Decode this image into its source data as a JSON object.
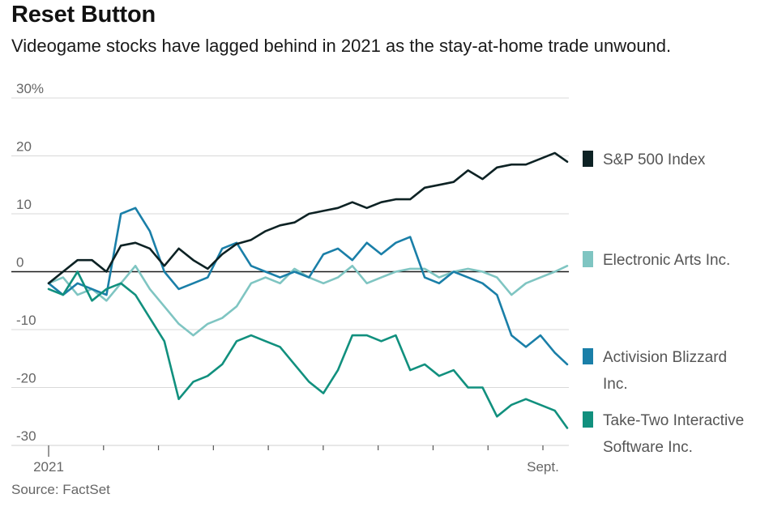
{
  "title": "Reset Button",
  "subtitle": "Videogame stocks have lagged behind in 2021 as the stay-at-home trade unwound.",
  "source": "Source: FactSet",
  "chart_data": {
    "type": "line",
    "ylim": [
      -30,
      30
    ],
    "y_ticks": [
      {
        "value": 30,
        "label": "30%"
      },
      {
        "value": 20,
        "label": "20"
      },
      {
        "value": 10,
        "label": "10"
      },
      {
        "value": 0,
        "label": "0"
      },
      {
        "value": -10,
        "label": "-10"
      },
      {
        "value": -20,
        "label": "-20"
      },
      {
        "value": -30,
        "label": "-30"
      }
    ],
    "x_labels": [
      {
        "at": 0,
        "label": "2021"
      },
      {
        "at": 1,
        "label": "Sept."
      }
    ],
    "x_range": [
      "2021-01-01",
      "2021-09-09"
    ],
    "series": [
      {
        "name": "S&P 500 Index",
        "legend_lines": [
          "S&P 500 Index"
        ],
        "color": "#0d2224",
        "x": [
          "2021-01-01",
          "2021-01-08",
          "2021-01-15",
          "2021-01-22",
          "2021-01-29",
          "2021-02-05",
          "2021-02-12",
          "2021-02-19",
          "2021-02-26",
          "2021-03-05",
          "2021-03-12",
          "2021-03-19",
          "2021-03-26",
          "2021-04-02",
          "2021-04-09",
          "2021-04-16",
          "2021-04-23",
          "2021-04-30",
          "2021-05-07",
          "2021-05-14",
          "2021-05-21",
          "2021-05-28",
          "2021-06-04",
          "2021-06-11",
          "2021-06-18",
          "2021-06-25",
          "2021-07-02",
          "2021-07-09",
          "2021-07-16",
          "2021-07-23",
          "2021-07-30",
          "2021-08-06",
          "2021-08-13",
          "2021-08-20",
          "2021-08-27",
          "2021-09-03",
          "2021-09-09"
        ],
        "values": [
          -2,
          0,
          2,
          2,
          0,
          4.5,
          5,
          4,
          1,
          4,
          2,
          0.5,
          3,
          4.8,
          5.5,
          7,
          8,
          8.5,
          10,
          10.5,
          11,
          12,
          11,
          12,
          12.5,
          12.5,
          14.5,
          15,
          15.5,
          17.5,
          16,
          18,
          18.5,
          18.5,
          19.5,
          20.5,
          19
        ]
      },
      {
        "name": "Electronic Arts Inc.",
        "legend_lines": [
          "Electronic Arts Inc."
        ],
        "color": "#7fc5c2",
        "x": [
          "2021-01-01",
          "2021-01-08",
          "2021-01-15",
          "2021-01-22",
          "2021-01-29",
          "2021-02-05",
          "2021-02-12",
          "2021-02-19",
          "2021-02-26",
          "2021-03-05",
          "2021-03-12",
          "2021-03-19",
          "2021-03-26",
          "2021-04-02",
          "2021-04-09",
          "2021-04-16",
          "2021-04-23",
          "2021-04-30",
          "2021-05-07",
          "2021-05-14",
          "2021-05-21",
          "2021-05-28",
          "2021-06-04",
          "2021-06-11",
          "2021-06-18",
          "2021-06-25",
          "2021-07-02",
          "2021-07-09",
          "2021-07-16",
          "2021-07-23",
          "2021-07-30",
          "2021-08-06",
          "2021-08-13",
          "2021-08-20",
          "2021-08-27",
          "2021-09-03",
          "2021-09-09"
        ],
        "values": [
          -2,
          -1,
          -4,
          -3,
          -5,
          -2,
          1,
          -3,
          -6,
          -9,
          -11,
          -9,
          -8,
          -6,
          -2,
          -1,
          -2,
          0.5,
          -1,
          -2,
          -1,
          1,
          -2,
          -1,
          0,
          0.5,
          0.5,
          -1,
          0,
          0.5,
          0,
          -1,
          -4,
          -2,
          -1,
          0,
          1
        ]
      },
      {
        "name": "Activision Blizzard Inc.",
        "legend_lines": [
          "Activision Blizzard",
          "Inc."
        ],
        "color": "#1a7fa8",
        "x": [
          "2021-01-01",
          "2021-01-08",
          "2021-01-15",
          "2021-01-22",
          "2021-01-29",
          "2021-02-05",
          "2021-02-12",
          "2021-02-19",
          "2021-02-26",
          "2021-03-05",
          "2021-03-12",
          "2021-03-19",
          "2021-03-26",
          "2021-04-02",
          "2021-04-09",
          "2021-04-16",
          "2021-04-23",
          "2021-04-30",
          "2021-05-07",
          "2021-05-14",
          "2021-05-21",
          "2021-05-28",
          "2021-06-04",
          "2021-06-11",
          "2021-06-18",
          "2021-06-25",
          "2021-07-02",
          "2021-07-09",
          "2021-07-16",
          "2021-07-23",
          "2021-07-30",
          "2021-08-06",
          "2021-08-13",
          "2021-08-20",
          "2021-08-27",
          "2021-09-03",
          "2021-09-09"
        ],
        "values": [
          -2,
          -4,
          -2,
          -3,
          -4,
          10,
          11,
          7,
          0,
          -3,
          -2,
          -1,
          4,
          5,
          1,
          0,
          -1,
          0,
          -1,
          3,
          4,
          2,
          5,
          3,
          5,
          6,
          -1,
          -2,
          0,
          -1,
          -2,
          -4,
          -11,
          -13,
          -11,
          -14,
          -16
        ]
      },
      {
        "name": "Take-Two Interactive Software Inc.",
        "legend_lines": [
          "Take-Two Interactive",
          "Software Inc."
        ],
        "color": "#11907e",
        "x": [
          "2021-01-01",
          "2021-01-08",
          "2021-01-15",
          "2021-01-22",
          "2021-01-29",
          "2021-02-05",
          "2021-02-12",
          "2021-02-19",
          "2021-02-26",
          "2021-03-05",
          "2021-03-12",
          "2021-03-19",
          "2021-03-26",
          "2021-04-02",
          "2021-04-09",
          "2021-04-16",
          "2021-04-23",
          "2021-04-30",
          "2021-05-07",
          "2021-05-14",
          "2021-05-21",
          "2021-05-28",
          "2021-06-04",
          "2021-06-11",
          "2021-06-18",
          "2021-06-25",
          "2021-07-02",
          "2021-07-09",
          "2021-07-16",
          "2021-07-23",
          "2021-07-30",
          "2021-08-06",
          "2021-08-13",
          "2021-08-20",
          "2021-08-27",
          "2021-09-03",
          "2021-09-09"
        ],
        "values": [
          -3,
          -4,
          0,
          -5,
          -3,
          -2,
          -4,
          -8,
          -12,
          -22,
          -19,
          -18,
          -16,
          -12,
          -11,
          -12,
          -13,
          -16,
          -19,
          -21,
          -17,
          -11,
          -11,
          -12,
          -11,
          -17,
          -16,
          -18,
          -17,
          -20,
          -20,
          -25,
          -23,
          -22,
          -23,
          -24,
          -27
        ]
      }
    ]
  }
}
